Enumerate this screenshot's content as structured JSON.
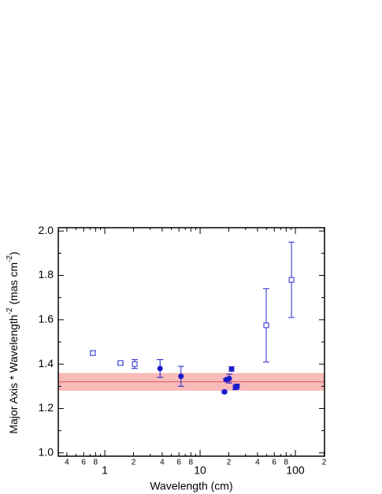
{
  "chart_data": {
    "type": "scatter",
    "xlabel": "Wavelength (cm)",
    "ylabel": [
      "Major Axis * Wavelength",
      "-2",
      "  (mas cm",
      "-2",
      ")"
    ],
    "xscale": "log",
    "xlim": [
      0.325,
      202
    ],
    "ylim": [
      0.985,
      2.015
    ],
    "xticks": [
      {
        "value": 0.4,
        "label": "4"
      },
      {
        "value": 0.6,
        "label": "6"
      },
      {
        "value": 0.8,
        "label": "8"
      },
      1,
      {
        "value": 2,
        "label": "2"
      },
      {
        "value": 4,
        "label": "4"
      },
      {
        "value": 6,
        "label": "6"
      },
      {
        "value": 8,
        "label": "8"
      },
      10,
      {
        "value": 20,
        "label": "2"
      },
      {
        "value": 40,
        "label": "4"
      },
      {
        "value": 60,
        "label": "6"
      },
      {
        "value": 80,
        "label": "8"
      },
      100,
      {
        "value": 200,
        "label": "2"
      }
    ],
    "xminorticks": [
      0.5,
      0.7,
      0.9,
      3,
      5,
      7,
      9,
      30,
      50,
      70,
      90
    ],
    "yticks": [
      {
        "value": 1.0,
        "label": "1.0"
      },
      {
        "value": 1.2,
        "label": "1.2"
      },
      {
        "value": 1.4,
        "label": "1.4"
      },
      {
        "value": 1.6,
        "label": "1.6"
      },
      {
        "value": 1.8,
        "label": "1.8"
      },
      {
        "value": 2.0,
        "label": "2.0"
      }
    ],
    "yminorticks": [
      1.1,
      1.3,
      1.5,
      1.7,
      1.9
    ],
    "band": {
      "low": 1.28,
      "high": 1.36,
      "line": 1.32,
      "color": "#f9baba",
      "line_color": "#e05555"
    },
    "series": [
      {
        "marker": "open-square",
        "color": "#2a2ad0",
        "x": [
          0.75,
          1.46,
          2.06,
          49.4,
          91
        ],
        "values": [
          1.45,
          1.405,
          1.4,
          1.575,
          1.78
        ],
        "errors": [
          0.01,
          0.005,
          0.02,
          0.165,
          0.17
        ]
      },
      {
        "marker": "filled-circle",
        "color": "#1a1acc",
        "x": [
          3.8,
          6.3,
          18.0,
          18.8,
          20.2,
          21.4,
          23.5,
          24.4
        ],
        "values": [
          1.38,
          1.345,
          1.275,
          1.33,
          1.335,
          1.378,
          1.295,
          1.3
        ],
        "errors": [
          0.04,
          0.045,
          0.005,
          0.005,
          0.02,
          0.01,
          0.01,
          0.01
        ]
      }
    ]
  }
}
